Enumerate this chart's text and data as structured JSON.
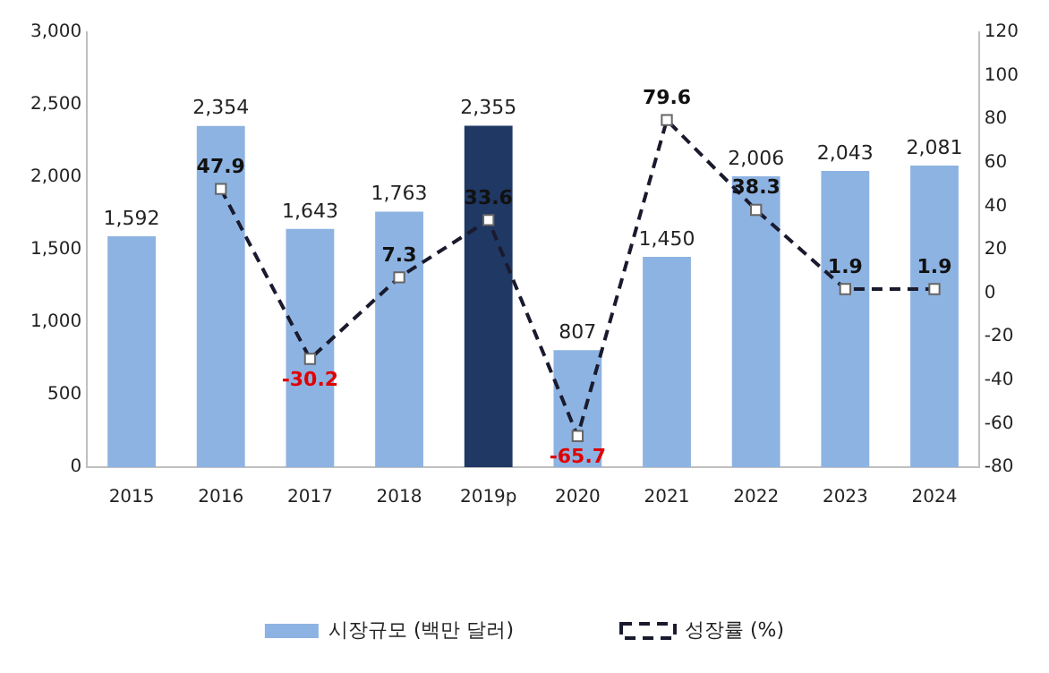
{
  "chart_data": {
    "type": "bar",
    "categories": [
      "2015",
      "2016",
      "2017",
      "2018",
      "2019p",
      "2020",
      "2021",
      "2022",
      "2023",
      "2024"
    ],
    "series": [
      {
        "name": "시장규모 (백만 달러)",
        "color": "#8db3e2",
        "colors": [
          "#8db3e2",
          "#8db3e2",
          "#8db3e2",
          "#8db3e2",
          "#1f3864",
          "#8db3e2",
          "#8db3e2",
          "#8db3e2",
          "#8db3e2",
          "#8db3e2"
        ],
        "values": [
          1592,
          2354,
          1643,
          1763,
          2355,
          807,
          1450,
          2006,
          2043,
          2081
        ],
        "value_labels": [
          "1,592",
          "2,354",
          "1,643",
          "1,763",
          "2,355",
          "807",
          "1,450",
          "2,006",
          "2,043",
          "2,081"
        ]
      },
      {
        "name": "성장률 (%)",
        "type": "line",
        "axis": "y2",
        "color": "#1a1a2e",
        "marker": "square",
        "line_style": "dashed",
        "values": [
          null,
          47.9,
          -30.2,
          7.3,
          33.6,
          -65.7,
          79.6,
          38.3,
          1.9,
          1.9
        ],
        "value_labels": [
          null,
          "47.9",
          "-30.2",
          "7.3",
          "33.6",
          "-65.7",
          "79.6",
          "38.3",
          "1.9",
          "1.9"
        ]
      }
    ],
    "ylim": [
      0,
      3000
    ],
    "yticks": [
      {
        "value": 0,
        "label": "0"
      },
      {
        "value": 500,
        "label": "500"
      },
      {
        "value": 1000,
        "label": "1,000"
      },
      {
        "value": 1500,
        "label": "1,500"
      },
      {
        "value": 2000,
        "label": "2,000"
      },
      {
        "value": 2500,
        "label": "2,500"
      },
      {
        "value": 3000,
        "label": "3,000"
      }
    ],
    "y2lim": [
      -80,
      120
    ],
    "y2ticks": [
      -80,
      -60,
      -40,
      -20,
      0,
      20,
      40,
      60,
      80,
      100,
      120
    ],
    "grid": false,
    "legend": "bottom"
  }
}
